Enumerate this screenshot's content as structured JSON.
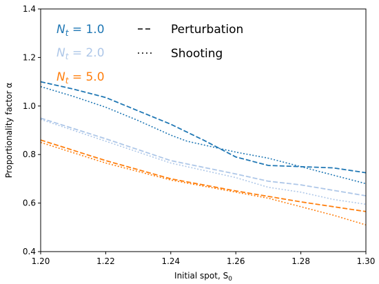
{
  "chart_data": {
    "type": "line",
    "xlabel": "Initial spot, S",
    "xlabel_sub": "0",
    "ylabel": "Proportionality factor α",
    "xlim": [
      1.2,
      1.3
    ],
    "ylim": [
      0.4,
      1.4
    ],
    "xticks": [
      1.2,
      1.22,
      1.24,
      1.26,
      1.28,
      1.3
    ],
    "yticks": [
      0.4,
      0.6,
      0.8,
      1.0,
      1.2,
      1.4
    ],
    "xtick_labels": [
      "1.20",
      "1.22",
      "1.24",
      "1.26",
      "1.28",
      "1.30"
    ],
    "ytick_labels": [
      "0.4",
      "0.6",
      "0.8",
      "1.0",
      "1.2",
      "1.4"
    ],
    "grid": false,
    "legend_nt": [
      {
        "label_var": "N",
        "label_sub": "t",
        "label_value": "= 1.0",
        "color": "#1f77b4"
      },
      {
        "label_var": "N",
        "label_sub": "t",
        "label_value": "= 2.0",
        "color": "#aec7e8"
      },
      {
        "label_var": "N",
        "label_sub": "t",
        "label_value": "= 5.0",
        "color": "#ff7f0e"
      }
    ],
    "legend_methods": [
      {
        "label": "Perturbation",
        "style": "dashed"
      },
      {
        "label": "Shooting",
        "style": "dotted"
      }
    ],
    "legend_placement": "top",
    "series": [
      {
        "nt": "1.0",
        "method": "Perturbation",
        "color": "#1f77b4",
        "style": "dashed",
        "x": [
          1.2,
          1.21,
          1.22,
          1.23,
          1.24,
          1.25,
          1.26,
          1.27,
          1.28,
          1.29,
          1.3
        ],
        "y": [
          1.1,
          1.07,
          1.035,
          0.98,
          0.925,
          0.86,
          0.79,
          0.755,
          0.75,
          0.745,
          0.725
        ]
      },
      {
        "nt": "1.0",
        "method": "Shooting",
        "color": "#1f77b4",
        "style": "dotted",
        "x": [
          1.2,
          1.21,
          1.22,
          1.23,
          1.24,
          1.245,
          1.25,
          1.26,
          1.27,
          1.28,
          1.29,
          1.3
        ],
        "y": [
          1.08,
          1.04,
          0.995,
          0.94,
          0.88,
          0.855,
          0.84,
          0.81,
          0.785,
          0.75,
          0.715,
          0.68
        ]
      },
      {
        "nt": "2.0",
        "method": "Perturbation",
        "color": "#aec7e8",
        "style": "dashed",
        "x": [
          1.2,
          1.22,
          1.24,
          1.26,
          1.27,
          1.28,
          1.3
        ],
        "y": [
          0.95,
          0.865,
          0.775,
          0.72,
          0.69,
          0.675,
          0.63
        ]
      },
      {
        "nt": "2.0",
        "method": "Shooting",
        "color": "#aec7e8",
        "style": "dotted",
        "x": [
          1.2,
          1.22,
          1.24,
          1.26,
          1.27,
          1.28,
          1.29,
          1.3
        ],
        "y": [
          0.945,
          0.855,
          0.765,
          0.705,
          0.665,
          0.645,
          0.615,
          0.595
        ]
      },
      {
        "nt": "5.0",
        "method": "Perturbation",
        "color": "#ff7f0e",
        "style": "dashed",
        "x": [
          1.2,
          1.22,
          1.24,
          1.26,
          1.28,
          1.3
        ],
        "y": [
          0.86,
          0.775,
          0.7,
          0.65,
          0.605,
          0.565
        ]
      },
      {
        "nt": "5.0",
        "method": "Shooting",
        "color": "#ff7f0e",
        "style": "dotted",
        "x": [
          1.2,
          1.22,
          1.24,
          1.26,
          1.27,
          1.28,
          1.29,
          1.3
        ],
        "y": [
          0.85,
          0.765,
          0.695,
          0.645,
          0.62,
          0.585,
          0.55,
          0.51
        ]
      }
    ]
  }
}
